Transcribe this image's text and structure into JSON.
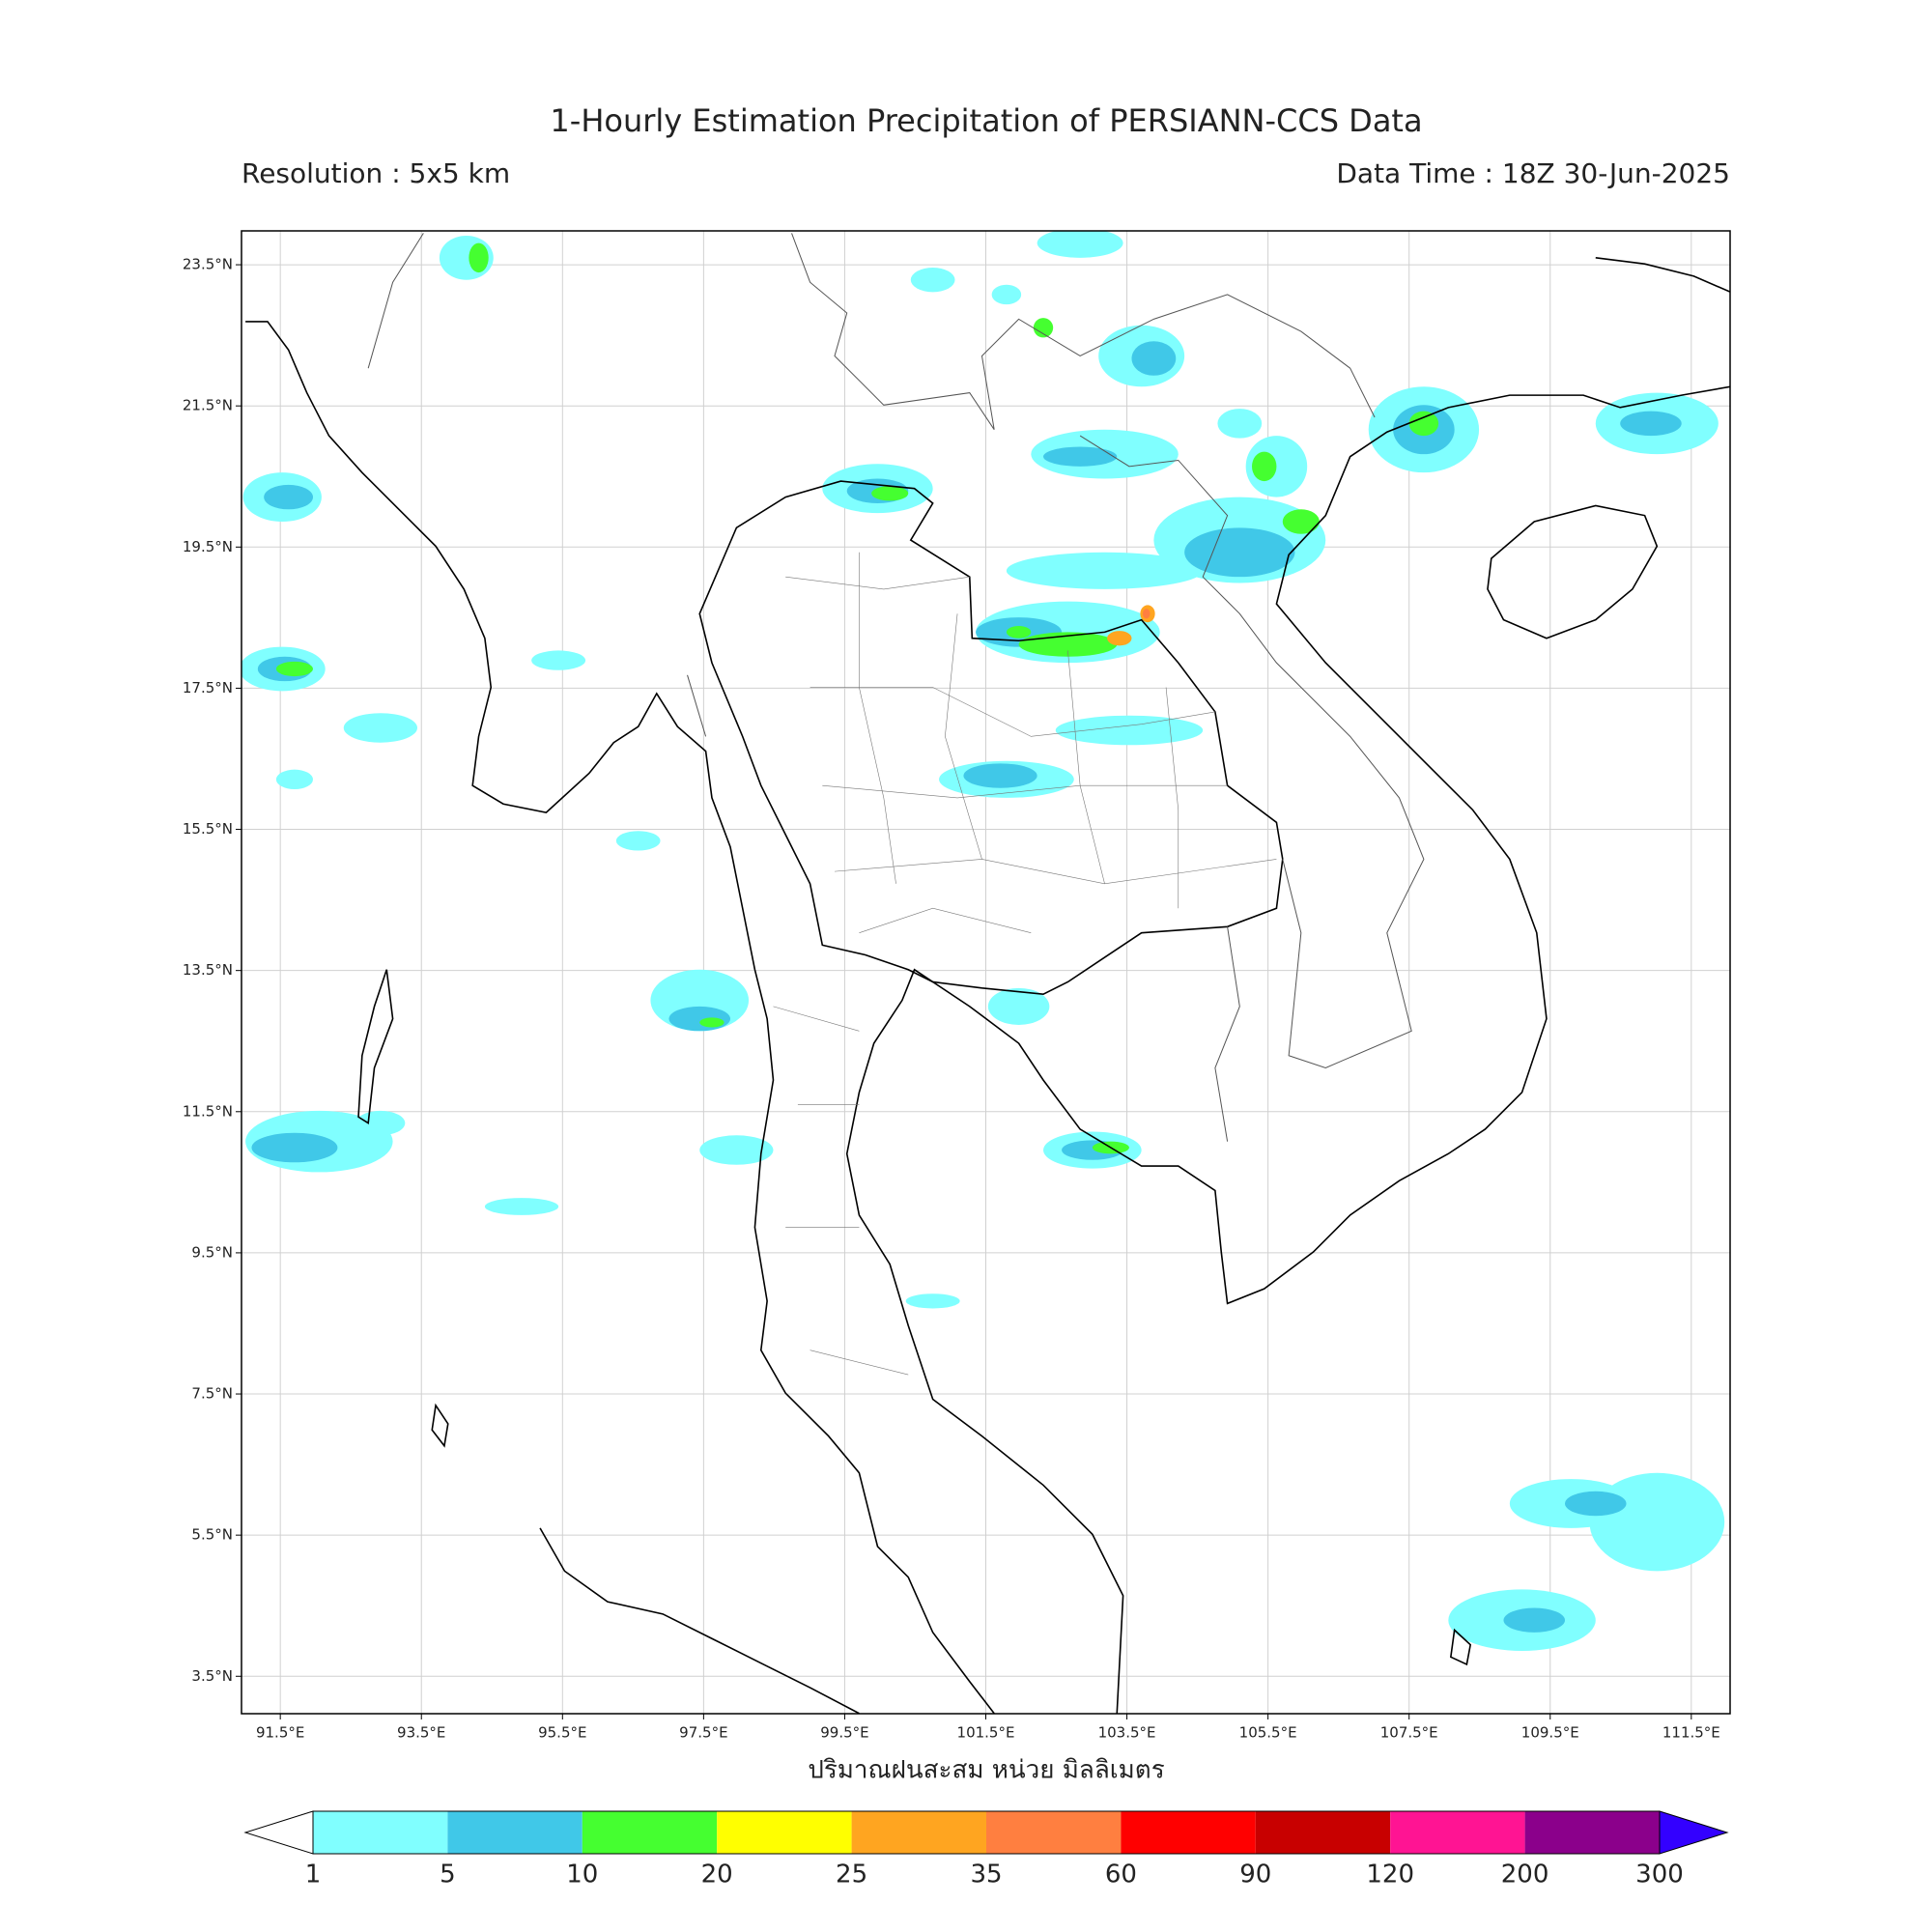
{
  "header": {
    "title": "1-Hourly Estimation Precipitation of PERSIANN-CCS Data",
    "resolution": "Resolution : 5x5 km",
    "data_time": "Data Time : 18Z 30-Jun-2025"
  },
  "map": {
    "xlim": [
      90.95,
      112.05
    ],
    "ylim": [
      2.97,
      23.98
    ],
    "xticks": [
      {
        "value": 91.5,
        "label": "91.5°E"
      },
      {
        "value": 93.5,
        "label": "93.5°E"
      },
      {
        "value": 95.5,
        "label": "95.5°E"
      },
      {
        "value": 97.5,
        "label": "97.5°E"
      },
      {
        "value": 99.5,
        "label": "99.5°E"
      },
      {
        "value": 101.5,
        "label": "101.5°E"
      },
      {
        "value": 103.5,
        "label": "103.5°E"
      },
      {
        "value": 105.5,
        "label": "105.5°E"
      },
      {
        "value": 107.5,
        "label": "107.5°E"
      },
      {
        "value": 109.5,
        "label": "109.5°E"
      },
      {
        "value": 111.5,
        "label": "111.5°E"
      }
    ],
    "yticks": [
      {
        "value": 23.5,
        "label": "23.5°N"
      },
      {
        "value": 21.5,
        "label": "21.5°N"
      },
      {
        "value": 19.5,
        "label": "19.5°N"
      },
      {
        "value": 17.5,
        "label": "17.5°N"
      },
      {
        "value": 15.5,
        "label": "15.5°N"
      },
      {
        "value": 13.5,
        "label": "13.5°N"
      },
      {
        "value": 11.5,
        "label": "11.5°N"
      },
      {
        "value": 9.5,
        "label": "9.5°N"
      },
      {
        "value": 7.5,
        "label": "7.5°N"
      },
      {
        "value": 5.5,
        "label": "5.5°N"
      },
      {
        "value": 3.5,
        "label": "3.5°N"
      }
    ],
    "grid": true,
    "xlabel": "ปริมาณฝนสะสม หน่วย มิลลิเมตร"
  },
  "colorbar": {
    "levels": [
      1,
      5,
      10,
      20,
      25,
      35,
      60,
      90,
      120,
      200,
      300
    ],
    "colors": [
      "#80ffff",
      "#40c8e8",
      "#45ff30",
      "#ffff00",
      "#ffa520",
      "#ff7f40",
      "#ff0000",
      "#c80000",
      "#ff1493",
      "#8b008b"
    ],
    "under_color": "#ffffff",
    "over_color": "#3300ff"
  }
}
